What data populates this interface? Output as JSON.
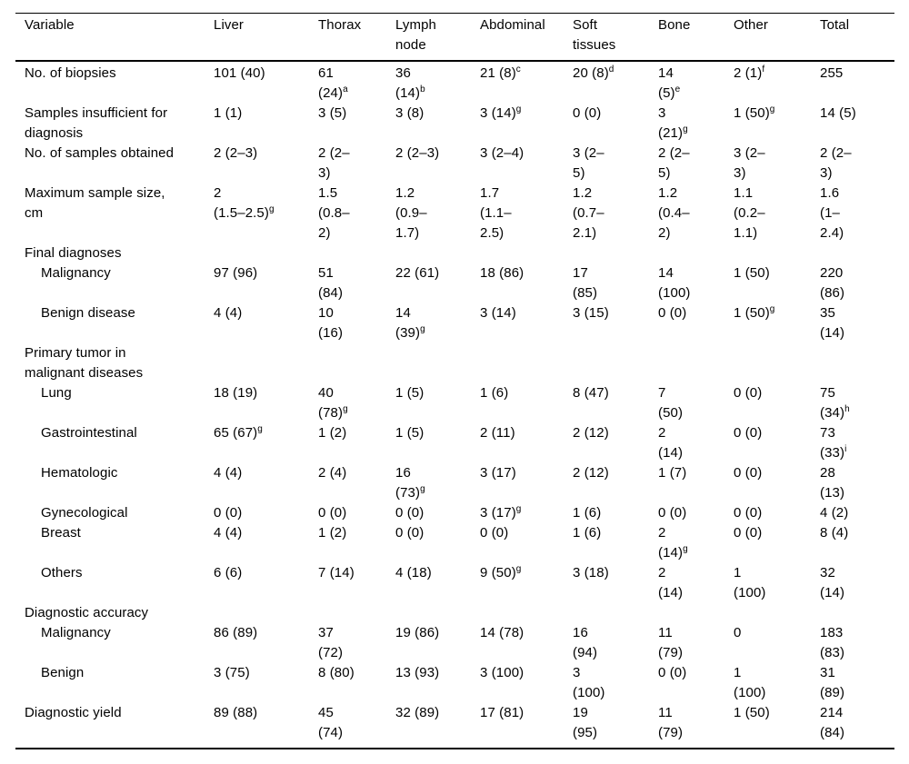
{
  "page": {
    "background_color": "#ffffff",
    "text_color": "#000000",
    "rule_color": "#000000"
  },
  "table": {
    "columns": [
      "Variable",
      "Liver",
      "Thorax",
      "Lymph\nnode",
      "Abdominal",
      "Soft\ntissues",
      "Bone",
      "Other",
      "Total"
    ],
    "rows": [
      {
        "label": "No. of biopsies",
        "indent": false,
        "cells": [
          "101 (40)",
          "61\n(24)^a",
          "36\n(14)^b",
          "21 (8)^c",
          "20 (8)^d",
          "14\n(5)^e",
          "2 (1)^f",
          "255"
        ]
      },
      {
        "label": "Samples insufficient for\ndiagnosis",
        "indent": false,
        "cells": [
          "1 (1)",
          "3 (5)",
          "3 (8)",
          "3 (14)^g",
          "0 (0)",
          "3\n(21)^g",
          "1 (50)^g",
          "14 (5)"
        ]
      },
      {
        "label": "No. of samples obtained",
        "indent": false,
        "cells": [
          "2 (2–3)",
          "2 (2–\n3)",
          "2 (2–3)",
          "3 (2–4)",
          "3 (2–\n5)",
          "2 (2–\n5)",
          "3 (2–\n3)",
          "2 (2–\n3)"
        ]
      },
      {
        "label": "Maximum sample size,\ncm",
        "indent": false,
        "cells": [
          "2\n(1.5–2.5)^g",
          "1.5\n(0.8–\n2)",
          "1.2\n(0.9–\n1.7)",
          "1.7\n(1.1–\n2.5)",
          "1.2\n(0.7–\n2.1)",
          "1.2\n(0.4–\n2)",
          "1.1\n(0.2–\n1.1)",
          "1.6\n(1–\n2.4)"
        ]
      },
      {
        "label": "Final diagnoses",
        "indent": false,
        "cells": [
          "",
          "",
          "",
          "",
          "",
          "",
          "",
          ""
        ]
      },
      {
        "label": "Malignancy",
        "indent": true,
        "cells": [
          "97 (96)",
          "51\n(84)",
          "22 (61)",
          "18 (86)",
          "17\n(85)",
          "14\n(100)",
          "1 (50)",
          "220\n(86)"
        ]
      },
      {
        "label": "Benign disease",
        "indent": true,
        "cells": [
          "4 (4)",
          "10\n(16)",
          "14\n(39)^g",
          "3 (14)",
          "3 (15)",
          "0 (0)",
          "1 (50)^g",
          "35\n(14)"
        ]
      },
      {
        "label": "Primary tumor in\nmalignant diseases",
        "indent": false,
        "cells": [
          "",
          "",
          "",
          "",
          "",
          "",
          "",
          ""
        ]
      },
      {
        "label": "Lung",
        "indent": true,
        "cells": [
          "18 (19)",
          "40\n(78)^g",
          "1 (5)",
          "1 (6)",
          "8 (47)",
          "7\n(50)",
          "0 (0)",
          "75\n(34)^h"
        ]
      },
      {
        "label": "Gastrointestinal",
        "indent": true,
        "cells": [
          "65 (67)^g",
          "1 (2)",
          "1 (5)",
          "2 (11)",
          "2 (12)",
          "2\n(14)",
          "0 (0)",
          "73\n(33)^i"
        ]
      },
      {
        "label": "Hematologic",
        "indent": true,
        "cells": [
          "4 (4)",
          "2 (4)",
          "16\n(73)^g",
          "3 (17)",
          "2 (12)",
          "1 (7)",
          "0 (0)",
          "28\n(13)"
        ]
      },
      {
        "label": "Gynecological",
        "indent": true,
        "cells": [
          "0 (0)",
          "0 (0)",
          "0 (0)",
          "3 (17)^g",
          "1 (6)",
          "0 (0)",
          "0 (0)",
          "4 (2)"
        ]
      },
      {
        "label": "Breast",
        "indent": true,
        "cells": [
          "4 (4)",
          "1 (2)",
          "0 (0)",
          "0 (0)",
          "1 (6)",
          "2\n(14)^g",
          "0 (0)",
          "8 (4)"
        ]
      },
      {
        "label": "Others",
        "indent": true,
        "cells": [
          "6 (6)",
          "7 (14)",
          "4 (18)",
          "9 (50)^g",
          "3 (18)",
          "2\n(14)",
          "1\n(100)",
          "32\n(14)"
        ]
      },
      {
        "label": "Diagnostic accuracy",
        "indent": false,
        "cells": [
          "",
          "",
          "",
          "",
          "",
          "",
          "",
          ""
        ]
      },
      {
        "label": "Malignancy",
        "indent": true,
        "cells": [
          "86 (89)",
          "37\n(72)",
          "19 (86)",
          "14 (78)",
          "16\n(94)",
          "11\n(79)",
          "0",
          "183\n(83)"
        ]
      },
      {
        "label": "Benign",
        "indent": true,
        "cells": [
          "3 (75)",
          "8 (80)",
          "13 (93)",
          "3 (100)",
          "3\n(100)",
          "0 (0)",
          "1\n(100)",
          "31\n(89)"
        ]
      },
      {
        "label": "Diagnostic yield",
        "indent": false,
        "cells": [
          "89 (88)",
          "45\n(74)",
          "32 (89)",
          "17 (81)",
          "19\n(95)",
          "11\n(79)",
          "1 (50)",
          "214\n(84)"
        ]
      }
    ]
  }
}
